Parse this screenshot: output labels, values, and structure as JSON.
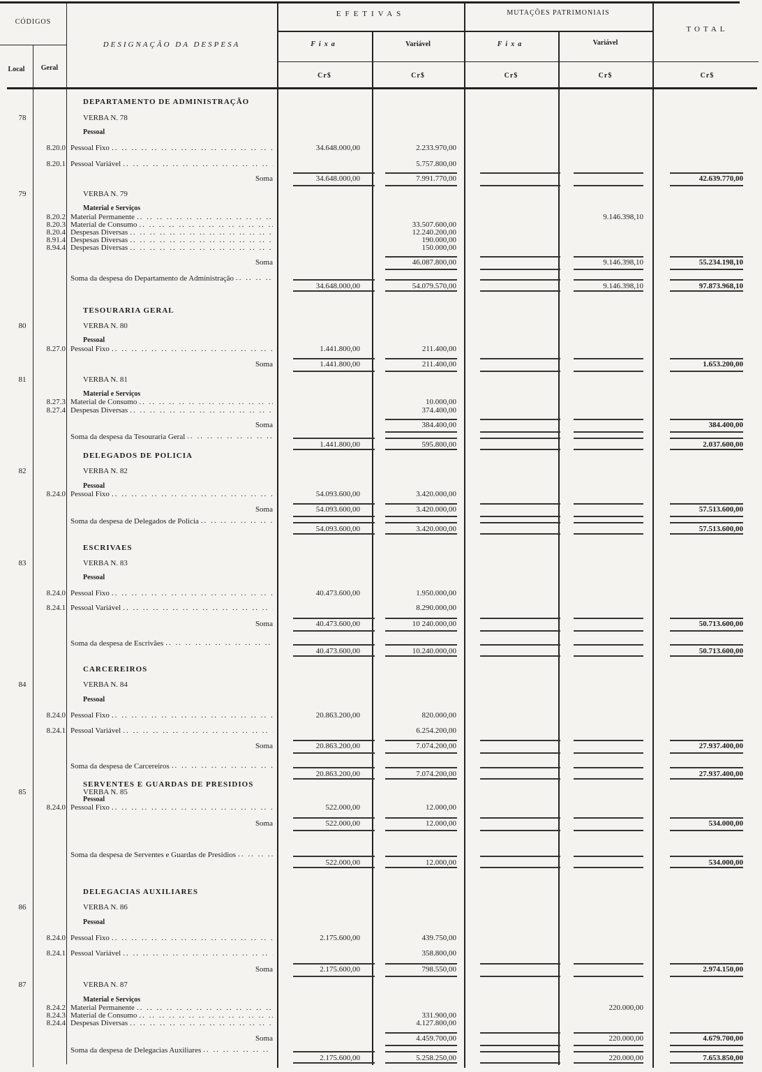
{
  "header": {
    "codigos": "CÓDIGOS",
    "local": "Local",
    "geral": "Geral",
    "designacao": "DESIGNAÇÃO DA DESPESA",
    "efetivas": "EFETIVAS",
    "mutacoes": "MUTAÇÕES PATRIMONIAIS",
    "total": "TOTAL",
    "fixa": "Fixa",
    "variavel": "Variável",
    "currency": "Cr$"
  },
  "leader": ".. .. .. .. .. .. .. .. .. .. .. .. .. .. .. .. .. .. .. .. ..",
  "rows": [
    {
      "type": "heading",
      "desc": "DEPARTAMENTO DE ADMINISTRAÇÃO"
    },
    {
      "type": "verba",
      "local": "78",
      "desc": "VERBA N. 78"
    },
    {
      "type": "sub",
      "desc": "Pessoal"
    },
    {
      "type": "item",
      "geral": "8.20.0",
      "desc": "Pessoal Fixo",
      "ef_fixa": "34.648.000,00",
      "ef_var": "2.233.970,00"
    },
    {
      "type": "item",
      "geral": "8.20.1",
      "desc": "Pessoal Variável",
      "ef_var": "5.757.800,00"
    },
    {
      "type": "soma",
      "desc": "Soma",
      "ef_fixa": "34.648.000,00",
      "ef_var": "7.991.770,00",
      "total": "42.639.770,00"
    },
    {
      "type": "verba",
      "local": "79",
      "desc": "VERBA N. 79"
    },
    {
      "type": "sub",
      "desc": "Material e Serviços"
    },
    {
      "type": "item",
      "geral": "8.20.2",
      "desc": "Material Permanente",
      "mut_var": "9.146.398,10"
    },
    {
      "type": "item",
      "geral": "8.20.3",
      "desc": "Material de Consumo",
      "ef_var": "33.507.600,00"
    },
    {
      "type": "item",
      "geral": "8.20.4",
      "desc": "Despesas Diversas",
      "ef_var": "12.240.200,00"
    },
    {
      "type": "item",
      "geral": "8.91.4",
      "desc": "Despesas Diversas",
      "ef_var": "190.000,00"
    },
    {
      "type": "item",
      "geral": "8.94.4",
      "desc": "Despesas Diversas",
      "ef_var": "150.000,00"
    },
    {
      "type": "soma",
      "desc": "Soma",
      "ef_var": "46.087.800,00",
      "mut_var": "9.146.398,10",
      "total": "55.234.198,10"
    },
    {
      "type": "total-row",
      "desc": "Soma da despesa do Departamento de Administração",
      "ef_fixa": "34.648.000,00",
      "ef_var": "54.079.570,00",
      "mut_var": "9.146.398,10",
      "total": "97.873.968,10"
    },
    {
      "type": "heading",
      "desc": "TESOURARIA GERAL"
    },
    {
      "type": "verba",
      "local": "80",
      "desc": "VERBA N. 80"
    },
    {
      "type": "sub",
      "desc": "Pessoal"
    },
    {
      "type": "item",
      "geral": "8.27.0",
      "desc": "Pessoal Fixo",
      "ef_fixa": "1.441.800,00",
      "ef_var": "211.400,00"
    },
    {
      "type": "soma",
      "desc": "Soma",
      "ef_fixa": "1.441.800,00",
      "ef_var": "211.400,00",
      "total": "1.653.200,00"
    },
    {
      "type": "verba",
      "local": "81",
      "desc": "VERBA N. 81"
    },
    {
      "type": "sub",
      "desc": "Material e Serviços"
    },
    {
      "type": "item",
      "geral": "8.27.3",
      "desc": "Material de Consumo",
      "ef_var": "10.000,00"
    },
    {
      "type": "item",
      "geral": "8.27.4",
      "desc": "Despesas Diversas",
      "ef_var": "374.400,00"
    },
    {
      "type": "soma",
      "desc": "Soma",
      "ef_var": "384.400,00",
      "total": "384.400,00"
    },
    {
      "type": "total-row",
      "desc": "Soma da despesa da Tesouraria Geral",
      "ef_fixa": "1.441.800,00",
      "ef_var": "595.800,00",
      "total": "2.037.600,00"
    },
    {
      "type": "heading",
      "desc": "DELEGADOS DE POLICIA"
    },
    {
      "type": "verba",
      "local": "82",
      "desc": "VERBA N. 82"
    },
    {
      "type": "sub",
      "desc": "Pessoal"
    },
    {
      "type": "item",
      "geral": "8.24.0",
      "desc": "Pessoal Fixo",
      "ef_fixa": "54.093.600,00",
      "ef_var": "3.420.000,00"
    },
    {
      "type": "soma",
      "desc": "Soma",
      "ef_fixa": "54.093.600,00",
      "ef_var": "3.420.000,00",
      "total": "57.513.600,00"
    },
    {
      "type": "total-row",
      "desc": "Soma da despesa de Delegados de Policia",
      "ef_fixa": "54.093.600,00",
      "ef_var": "3.420.000,00",
      "total": "57.513.600,00"
    },
    {
      "type": "heading",
      "desc": "ESCRIVAES"
    },
    {
      "type": "verba",
      "local": "83",
      "desc": "VERBA N. 83"
    },
    {
      "type": "sub",
      "desc": "Pessoal"
    },
    {
      "type": "item",
      "geral": "8.24.0",
      "desc": "Pessoal Fixo",
      "ef_fixa": "40.473.600,00",
      "ef_var": "1.950.000,00"
    },
    {
      "type": "item",
      "geral": "8.24.1",
      "desc": "Pessoal Variável",
      "ef_var": "8.290.000,00"
    },
    {
      "type": "soma",
      "desc": "Soma",
      "ef_fixa": "40.473.600,00",
      "ef_var": "10 240.000,00",
      "total": "50.713.600,00"
    },
    {
      "type": "total-row",
      "desc": "Soma da despesa de Escrivães",
      "ef_fixa": "40.473.600,00",
      "ef_var": "10.240.000,00",
      "total": "50.713.600,00"
    },
    {
      "type": "heading",
      "desc": "CARCEREIROS"
    },
    {
      "type": "verba",
      "local": "84",
      "desc": "VERBA N. 84"
    },
    {
      "type": "sub",
      "desc": "Pessoal"
    },
    {
      "type": "item",
      "geral": "8.24.0",
      "desc": "Pessoal Fixo",
      "ef_fixa": "20.863.200,00",
      "ef_var": "820.000,00"
    },
    {
      "type": "item",
      "geral": "8.24.1",
      "desc": "Pessoal Variável",
      "ef_var": "6.254.200,00"
    },
    {
      "type": "soma",
      "desc": "Soma",
      "ef_fixa": "20.863.200,00",
      "ef_var": "7.074.200,00",
      "total": "27.937.400,00"
    },
    {
      "type": "total-row",
      "desc": "Soma da despesa de Carcereiros",
      "ef_fixa": "20.863.200,00",
      "ef_var": "7.074.200,00",
      "total": "27.937.400,00"
    },
    {
      "type": "heading",
      "desc": "SERVENTES E GUARDAS DE PRESIDIOS"
    },
    {
      "type": "verba",
      "local": "85",
      "desc": "VERBA N. 85"
    },
    {
      "type": "sub",
      "desc": "Pessoal"
    },
    {
      "type": "item",
      "geral": "8.24.0",
      "desc": "Pessoal Fixo",
      "ef_fixa": "522.000,00",
      "ef_var": "12.000,00"
    },
    {
      "type": "soma",
      "desc": "Soma",
      "ef_fixa": "522.000,00",
      "ef_var": "12.000,00",
      "total": "534.000,00"
    },
    {
      "type": "total-row",
      "desc": "Soma da despesa de Serventes e Guardas de Presidios",
      "ef_fixa": "522.000,00",
      "ef_var": "12.000,00",
      "total": "534.000,00"
    },
    {
      "type": "heading",
      "desc": "DELEGACIAS AUXILIARES"
    },
    {
      "type": "verba",
      "local": "86",
      "desc": "VERBA N. 86"
    },
    {
      "type": "sub",
      "desc": "Pessoal"
    },
    {
      "type": "item",
      "geral": "8.24.0",
      "desc": "Pessoal Fixo",
      "ef_fixa": "2.175.600,00",
      "ef_var": "439.750,00"
    },
    {
      "type": "item",
      "geral": "8.24.1",
      "desc": "Pessoal Variável",
      "ef_var": "358.800,00"
    },
    {
      "type": "soma",
      "desc": "Soma",
      "ef_fixa": "2.175.600,00",
      "ef_var": "798.550,00",
      "total": "2.974.150,00"
    },
    {
      "type": "verba",
      "local": "87",
      "desc": "VERBA N. 87"
    },
    {
      "type": "sub",
      "desc": "Material e Serviços"
    },
    {
      "type": "item",
      "geral": "8.24.2",
      "desc": "Material Permanente",
      "mut_var": "220.000,00"
    },
    {
      "type": "item",
      "geral": "8.24.3",
      "desc": "Material de Consumo",
      "ef_var": "331.900,00"
    },
    {
      "type": "item",
      "geral": "8.24.4",
      "desc": "Despesas Diversas",
      "ef_var": "4.127.800,00"
    },
    {
      "type": "soma",
      "desc": "Soma",
      "ef_var": "4.459.700,00",
      "mut_var": "220.000,00",
      "total": "4.679.700,00"
    },
    {
      "type": "total-row",
      "desc": "Soma da despesa de Delegacias Auxiliares",
      "ef_fixa": "2.175.600,00",
      "ef_var": "5.258.250,00",
      "mut_var": "220.000,00",
      "total": "7.653.850,00"
    }
  ]
}
